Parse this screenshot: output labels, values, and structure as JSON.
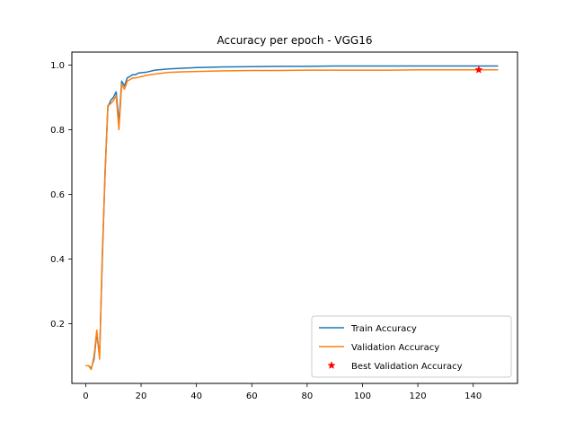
{
  "chart_data": {
    "type": "line",
    "title": "Accuracy per epoch - VGG16",
    "xlabel": "",
    "ylabel": "",
    "xlim": [
      -5,
      156
    ],
    "ylim": [
      0.015,
      1.04
    ],
    "x_ticks": [
      0,
      20,
      40,
      60,
      80,
      100,
      120,
      140
    ],
    "y_ticks": [
      0.2,
      0.4,
      0.6,
      0.8,
      1.0
    ],
    "y_tick_labels": [
      "0.2",
      "0.4",
      "0.6",
      "0.8",
      "1.0"
    ],
    "grid": false,
    "legend_position": "lower-right",
    "series": [
      {
        "name": "Train Accuracy",
        "color": "#1f77b4",
        "points": [
          [
            0,
            0.07
          ],
          [
            1,
            0.07
          ],
          [
            2,
            0.062
          ],
          [
            3,
            0.09
          ],
          [
            4,
            0.17
          ],
          [
            5,
            0.1
          ],
          [
            6,
            0.4
          ],
          [
            7,
            0.67
          ],
          [
            8,
            0.87
          ],
          [
            9,
            0.89
          ],
          [
            10,
            0.9
          ],
          [
            11,
            0.917
          ],
          [
            12,
            0.82
          ],
          [
            13,
            0.95
          ],
          [
            14,
            0.935
          ],
          [
            15,
            0.96
          ],
          [
            16,
            0.965
          ],
          [
            17,
            0.97
          ],
          [
            18,
            0.97
          ],
          [
            19,
            0.975
          ],
          [
            20,
            0.976
          ],
          [
            22,
            0.978
          ],
          [
            25,
            0.984
          ],
          [
            30,
            0.988
          ],
          [
            35,
            0.99
          ],
          [
            40,
            0.992
          ],
          [
            50,
            0.994
          ],
          [
            60,
            0.995
          ],
          [
            70,
            0.996
          ],
          [
            80,
            0.996
          ],
          [
            90,
            0.997
          ],
          [
            100,
            0.997
          ],
          [
            110,
            0.997
          ],
          [
            120,
            0.997
          ],
          [
            130,
            0.997
          ],
          [
            140,
            0.997
          ],
          [
            149,
            0.997
          ]
        ]
      },
      {
        "name": "Validation Accuracy",
        "color": "#ff7f0e",
        "points": [
          [
            0,
            0.07
          ],
          [
            1,
            0.07
          ],
          [
            2,
            0.058
          ],
          [
            3,
            0.1
          ],
          [
            4,
            0.18
          ],
          [
            5,
            0.09
          ],
          [
            6,
            0.42
          ],
          [
            7,
            0.66
          ],
          [
            8,
            0.875
          ],
          [
            9,
            0.88
          ],
          [
            10,
            0.89
          ],
          [
            11,
            0.905
          ],
          [
            12,
            0.8
          ],
          [
            13,
            0.94
          ],
          [
            14,
            0.925
          ],
          [
            15,
            0.95
          ],
          [
            16,
            0.955
          ],
          [
            17,
            0.96
          ],
          [
            18,
            0.96
          ],
          [
            19,
            0.962
          ],
          [
            20,
            0.964
          ],
          [
            22,
            0.968
          ],
          [
            25,
            0.972
          ],
          [
            30,
            0.977
          ],
          [
            35,
            0.979
          ],
          [
            40,
            0.98
          ],
          [
            50,
            0.982
          ],
          [
            60,
            0.983
          ],
          [
            70,
            0.983
          ],
          [
            80,
            0.984
          ],
          [
            90,
            0.984
          ],
          [
            100,
            0.984
          ],
          [
            110,
            0.984
          ],
          [
            120,
            0.985
          ],
          [
            130,
            0.985
          ],
          [
            140,
            0.985
          ],
          [
            149,
            0.985
          ]
        ]
      }
    ],
    "markers": [
      {
        "name": "Best Validation Accuracy",
        "color": "#ff0000",
        "symbol": "star",
        "x": 142,
        "y": 0.985
      }
    ]
  }
}
